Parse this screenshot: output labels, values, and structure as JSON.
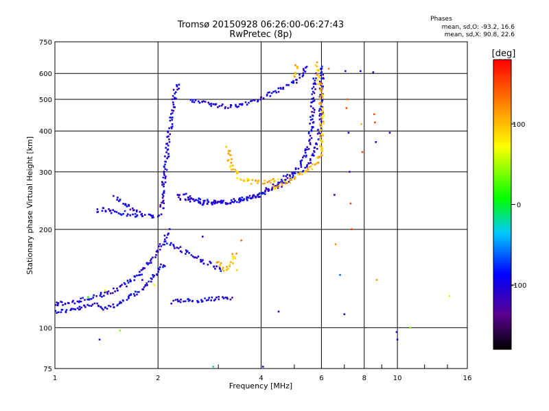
{
  "chart_data": {
    "type": "scatter",
    "title": "Tromsø 20150928 06:26:00-06:27:43",
    "subtitle": "RwPretec (8p)",
    "xlabel": "Frequency [MHz]",
    "ylabel": "Stationary phase Virtual Height [km]",
    "x_scale": "log",
    "y_scale": "log",
    "xlim": [
      1,
      16
    ],
    "ylim": [
      75,
      750
    ],
    "x_ticks": [
      1,
      2,
      4,
      6,
      8,
      10,
      16
    ],
    "y_ticks": [
      75,
      100,
      200,
      300,
      400,
      500,
      600,
      750
    ],
    "grid": true,
    "phases": {
      "title": "Phases",
      "o_line": "mean, sd,O: -93.2, 16.6",
      "x_line": "mean, sd,X:  90.8, 22.6"
    },
    "colorbar": {
      "label": "[deg]",
      "range": [
        -180,
        180
      ],
      "ticks": [
        100,
        0,
        -100
      ]
    },
    "traces": [
      {
        "points": [
          [
            1.0,
            112
          ],
          [
            1.1,
            113
          ],
          [
            1.2,
            115
          ],
          [
            1.3,
            118
          ],
          [
            1.4,
            115
          ],
          [
            1.5,
            117
          ],
          [
            1.6,
            121
          ],
          [
            1.7,
            126
          ],
          [
            1.8,
            131
          ],
          [
            1.9,
            140
          ],
          [
            2.0,
            150
          ],
          [
            2.1,
            158
          ]
        ],
        "phase": -100
      },
      {
        "points": [
          [
            1.0,
            118
          ],
          [
            1.15,
            120
          ],
          [
            1.3,
            124
          ],
          [
            1.45,
            128
          ],
          [
            1.6,
            135
          ],
          [
            1.75,
            145
          ],
          [
            1.9,
            160
          ],
          [
            2.0,
            172
          ],
          [
            2.1,
            185
          ],
          [
            2.15,
            200
          ]
        ],
        "phase": -100
      },
      {
        "points": [
          [
            1.32,
            228
          ],
          [
            1.4,
            230
          ],
          [
            1.5,
            226
          ],
          [
            1.6,
            224
          ],
          [
            1.7,
            221
          ],
          [
            1.8,
            220
          ],
          [
            1.9,
            219
          ],
          [
            2.0,
            221
          ],
          [
            2.05,
            222
          ]
        ],
        "phase": -100
      },
      {
        "points": [
          [
            1.5,
            250
          ],
          [
            1.55,
            245
          ],
          [
            1.6,
            238
          ],
          [
            1.7,
            230
          ],
          [
            1.8,
            224
          ]
        ],
        "phase": -100
      },
      {
        "points": [
          [
            2.05,
            230
          ],
          [
            2.1,
            300
          ],
          [
            2.15,
            380
          ],
          [
            2.2,
            460
          ],
          [
            2.25,
            530
          ],
          [
            2.3,
            560
          ]
        ],
        "phase": -100
      },
      {
        "points": [
          [
            2.5,
            500
          ],
          [
            2.8,
            485
          ],
          [
            3.0,
            478
          ],
          [
            3.2,
            475
          ],
          [
            3.5,
            482
          ],
          [
            3.8,
            495
          ],
          [
            4.2,
            515
          ],
          [
            4.6,
            538
          ],
          [
            5.0,
            565
          ],
          [
            5.3,
            600
          ],
          [
            5.5,
            635
          ]
        ],
        "phase": -100
      },
      {
        "points": [
          [
            2.3,
            258
          ],
          [
            2.5,
            248
          ],
          [
            2.8,
            243
          ],
          [
            3.1,
            242
          ],
          [
            3.4,
            244
          ],
          [
            3.8,
            252
          ],
          [
            4.2,
            265
          ],
          [
            4.6,
            282
          ],
          [
            5.0,
            300
          ],
          [
            5.3,
            325
          ],
          [
            5.5,
            355
          ],
          [
            5.6,
            410
          ],
          [
            5.65,
            470
          ],
          [
            5.7,
            520
          ],
          [
            5.72,
            600
          ]
        ],
        "phase": -100
      },
      {
        "points": [
          [
            2.3,
            250
          ],
          [
            2.6,
            242
          ],
          [
            2.9,
            240
          ],
          [
            3.2,
            243
          ],
          [
            3.6,
            248
          ],
          [
            4.0,
            256
          ],
          [
            4.4,
            268
          ],
          [
            4.8,
            283
          ],
          [
            5.2,
            300
          ],
          [
            5.5,
            320
          ],
          [
            5.75,
            345
          ],
          [
            5.9,
            380
          ],
          [
            5.98,
            440
          ],
          [
            6.0,
            500
          ],
          [
            6.02,
            560
          ],
          [
            6.05,
            640
          ]
        ],
        "phase": -100
      },
      {
        "points": [
          [
            3.2,
            355
          ],
          [
            3.25,
            320
          ],
          [
            3.35,
            300
          ],
          [
            3.5,
            285
          ],
          [
            3.7,
            280
          ],
          [
            3.9,
            278
          ],
          [
            4.2,
            280
          ],
          [
            4.5,
            283
          ]
        ],
        "phase": 100
      },
      {
        "points": [
          [
            4.3,
            268
          ],
          [
            4.6,
            275
          ],
          [
            4.9,
            285
          ],
          [
            5.2,
            295
          ],
          [
            5.5,
            305
          ],
          [
            5.8,
            320
          ],
          [
            5.95,
            340
          ],
          [
            6.0,
            380
          ],
          [
            6.02,
            450
          ],
          [
            5.95,
            540
          ],
          [
            5.85,
            610
          ],
          [
            5.75,
            650
          ]
        ],
        "phase": 100
      },
      {
        "points": [
          [
            5.1,
            640
          ],
          [
            5.05,
            615
          ],
          [
            5.0,
            598
          ],
          [
            4.95,
            585
          ]
        ],
        "phase": 100
      },
      {
        "points": [
          [
            2.15,
            180
          ],
          [
            2.3,
            175
          ],
          [
            2.5,
            168
          ],
          [
            2.7,
            160
          ],
          [
            2.9,
            155
          ],
          [
            3.1,
            150
          ]
        ],
        "phase": -100
      },
      {
        "points": [
          [
            3.0,
            160
          ],
          [
            3.1,
            150
          ],
          [
            3.2,
            152
          ],
          [
            3.3,
            160
          ],
          [
            3.4,
            170
          ]
        ],
        "phase": 100
      },
      {
        "points": [
          [
            2.2,
            120
          ],
          [
            2.5,
            121
          ],
          [
            2.8,
            122
          ],
          [
            3.1,
            123
          ],
          [
            3.3,
            122
          ]
        ],
        "phase": -100
      }
    ],
    "scatter": [
      {
        "x": 1.02,
        "y": 118,
        "phase": -100
      },
      {
        "x": 1.25,
        "y": 124,
        "phase": 20
      },
      {
        "x": 1.4,
        "y": 130,
        "phase": 60
      },
      {
        "x": 1.35,
        "y": 92,
        "phase": -100
      },
      {
        "x": 1.55,
        "y": 98,
        "phase": 40
      },
      {
        "x": 1.8,
        "y": 140,
        "phase": -100
      },
      {
        "x": 1.95,
        "y": 135,
        "phase": 80
      },
      {
        "x": 2.7,
        "y": 190,
        "phase": -100
      },
      {
        "x": 3.3,
        "y": 168,
        "phase": 120
      },
      {
        "x": 3.5,
        "y": 185,
        "phase": 140
      },
      {
        "x": 3.4,
        "y": 150,
        "phase": 90
      },
      {
        "x": 2.9,
        "y": 76,
        "phase": -30
      },
      {
        "x": 4.05,
        "y": 76,
        "phase": -100
      },
      {
        "x": 4.5,
        "y": 112,
        "phase": -100
      },
      {
        "x": 6.3,
        "y": 620,
        "phase": 130
      },
      {
        "x": 6.55,
        "y": 255,
        "phase": -100
      },
      {
        "x": 6.6,
        "y": 180,
        "phase": 120
      },
      {
        "x": 6.8,
        "y": 145,
        "phase": -60
      },
      {
        "x": 7.05,
        "y": 610,
        "phase": -100
      },
      {
        "x": 7.1,
        "y": 470,
        "phase": 150
      },
      {
        "x": 7.15,
        "y": 500,
        "phase": 140
      },
      {
        "x": 7.2,
        "y": 395,
        "phase": -100
      },
      {
        "x": 7.25,
        "y": 300,
        "phase": -100
      },
      {
        "x": 7.3,
        "y": 240,
        "phase": 150
      },
      {
        "x": 7.35,
        "y": 200,
        "phase": 155
      },
      {
        "x": 7.0,
        "y": 110,
        "phase": -100
      },
      {
        "x": 7.8,
        "y": 610,
        "phase": -100
      },
      {
        "x": 7.85,
        "y": 420,
        "phase": 100
      },
      {
        "x": 7.9,
        "y": 345,
        "phase": 150
      },
      {
        "x": 8.5,
        "y": 605,
        "phase": -100
      },
      {
        "x": 8.55,
        "y": 450,
        "phase": 150
      },
      {
        "x": 8.6,
        "y": 425,
        "phase": 150
      },
      {
        "x": 8.65,
        "y": 370,
        "phase": -100
      },
      {
        "x": 8.7,
        "y": 140,
        "phase": 120
      },
      {
        "x": 9.5,
        "y": 395,
        "phase": -100
      },
      {
        "x": 9.95,
        "y": 97,
        "phase": -100
      },
      {
        "x": 10.0,
        "y": 92,
        "phase": -100
      },
      {
        "x": 10.9,
        "y": 100,
        "phase": 40
      },
      {
        "x": 14.2,
        "y": 125,
        "phase": 60
      }
    ]
  }
}
